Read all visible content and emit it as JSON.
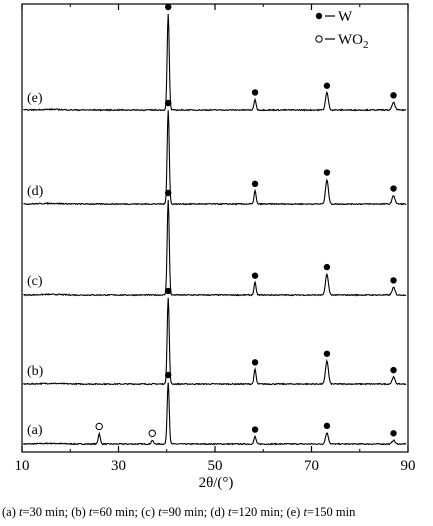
{
  "chart_data": {
    "type": "line",
    "xlabel": "2θ/(°)",
    "xlim": [
      10,
      90
    ],
    "xticks": [
      10,
      30,
      50,
      70,
      90
    ],
    "ylabel": "",
    "grid": false,
    "legend_position": "top-right",
    "legend": [
      {
        "marker": "filled-circle",
        "label": "W"
      },
      {
        "marker": "open-circle",
        "label": "WO2"
      }
    ],
    "peaks": {
      "W": [
        40.3,
        58.3,
        73.2,
        87.0
      ],
      "WO2": [
        26.0,
        37.0
      ]
    },
    "series": [
      {
        "name": "(a)",
        "peaks": [
          {
            "x": 26.0,
            "rel_height": 0.17,
            "phase": "WO2"
          },
          {
            "x": 37.0,
            "rel_height": 0.06,
            "phase": "WO2"
          },
          {
            "x": 40.3,
            "rel_height": 1.0,
            "phase": "W"
          },
          {
            "x": 58.3,
            "rel_height": 0.12,
            "phase": "W"
          },
          {
            "x": 73.2,
            "rel_height": 0.18,
            "phase": "W"
          },
          {
            "x": 87.0,
            "rel_height": 0.06,
            "phase": "W"
          }
        ]
      },
      {
        "name": "(b)",
        "peaks": [
          {
            "x": 40.3,
            "rel_height": 1.0,
            "phase": "W"
          },
          {
            "x": 58.3,
            "rel_height": 0.17,
            "phase": "W"
          },
          {
            "x": 73.2,
            "rel_height": 0.27,
            "phase": "W"
          },
          {
            "x": 87.0,
            "rel_height": 0.08,
            "phase": "W"
          }
        ]
      },
      {
        "name": "(c)",
        "peaks": [
          {
            "x": 40.3,
            "rel_height": 1.0,
            "phase": "W"
          },
          {
            "x": 58.3,
            "rel_height": 0.13,
            "phase": "W"
          },
          {
            "x": 73.2,
            "rel_height": 0.22,
            "phase": "W"
          },
          {
            "x": 87.0,
            "rel_height": 0.08,
            "phase": "W"
          }
        ]
      },
      {
        "name": "(d)",
        "peaks": [
          {
            "x": 40.3,
            "rel_height": 1.0,
            "phase": "W"
          },
          {
            "x": 58.3,
            "rel_height": 0.14,
            "phase": "W"
          },
          {
            "x": 73.2,
            "rel_height": 0.26,
            "phase": "W"
          },
          {
            "x": 87.0,
            "rel_height": 0.09,
            "phase": "W"
          }
        ]
      },
      {
        "name": "(e)",
        "peaks": [
          {
            "x": 40.3,
            "rel_height": 1.0,
            "phase": "W"
          },
          {
            "x": 58.3,
            "rel_height": 0.11,
            "phase": "W"
          },
          {
            "x": 73.2,
            "rel_height": 0.18,
            "phase": "W"
          },
          {
            "x": 87.0,
            "rel_height": 0.08,
            "phase": "W"
          }
        ]
      }
    ]
  },
  "caption": {
    "a_label": "(a) ",
    "a_var": "t",
    "a_val": "=30 min; ",
    "b_label": "(b) ",
    "b_var": "t",
    "b_val": "=60 min; ",
    "c_label": "(c) ",
    "c_var": "t",
    "c_val": "=90 min; ",
    "d_label": "(d) ",
    "d_var": "t",
    "d_val": "=120 min; ",
    "e_label": "(e) ",
    "e_var": "t",
    "e_val": "=150 min"
  }
}
